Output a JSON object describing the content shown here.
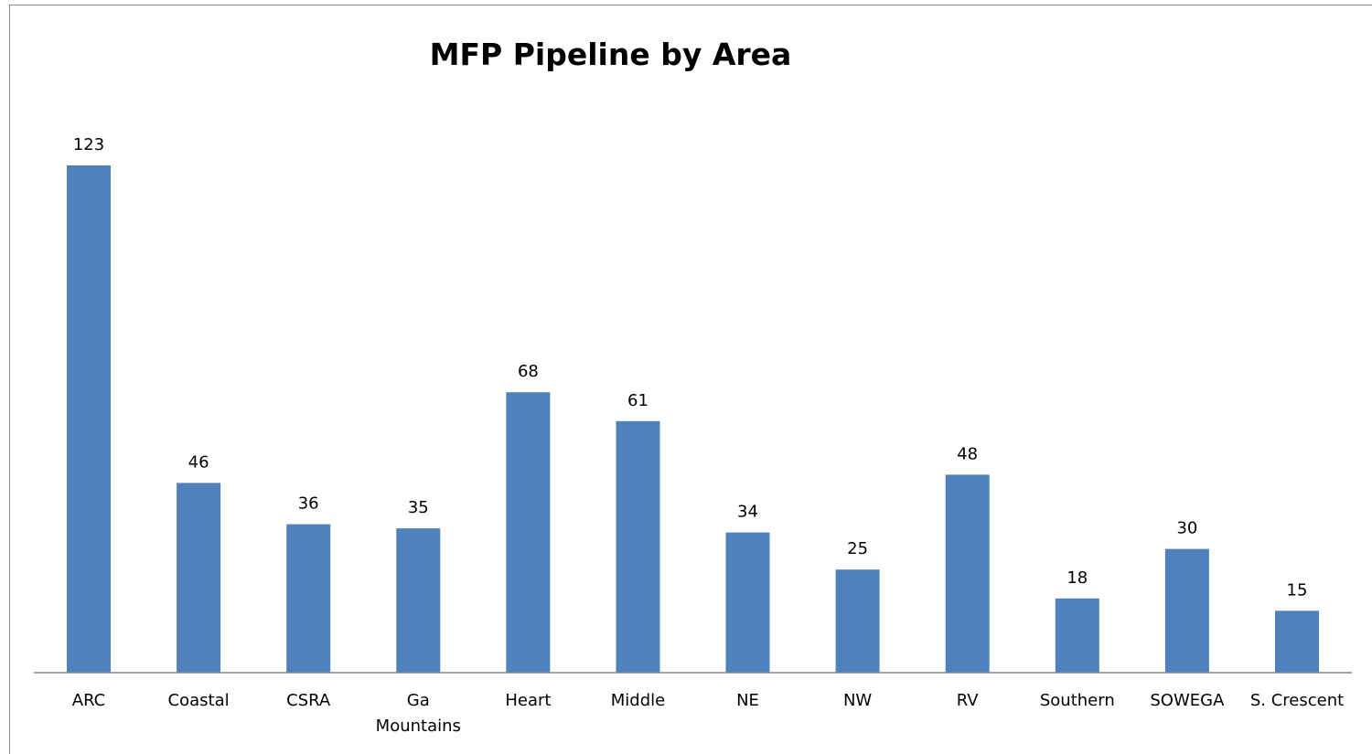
{
  "chart_data": {
    "type": "bar",
    "title": "MFP Pipeline by Area",
    "xlabel": "",
    "ylabel": "",
    "categories": [
      "ARC",
      "Coastal",
      "CSRA",
      "Ga Mountains",
      "Heart",
      "Middle",
      "NE",
      "NW",
      "RV",
      "Southern",
      "SOWEGA",
      "S. Crescent"
    ],
    "category_lines": [
      [
        "ARC"
      ],
      [
        "Coastal"
      ],
      [
        "CSRA"
      ],
      [
        "Ga",
        "Mountains"
      ],
      [
        "Heart"
      ],
      [
        "Middle"
      ],
      [
        "NE"
      ],
      [
        "NW"
      ],
      [
        "RV"
      ],
      [
        "Southern"
      ],
      [
        "SOWEGA"
      ],
      [
        "S. Crescent"
      ]
    ],
    "values": [
      123,
      46,
      36,
      35,
      68,
      61,
      34,
      25,
      48,
      18,
      30,
      15
    ],
    "ylim": [
      0,
      130
    ],
    "grid": false,
    "legend": "none",
    "bar_color": "#4f81bd",
    "axis_color": "#868686"
  }
}
